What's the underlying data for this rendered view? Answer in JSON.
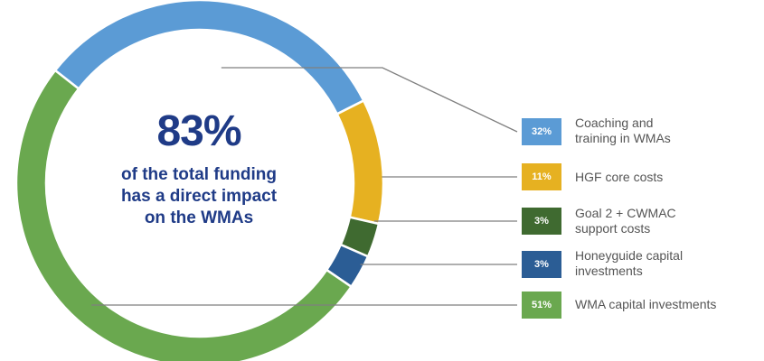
{
  "chart_data": {
    "type": "donut",
    "center_value": "83%",
    "center_text": [
      "of the total funding",
      "has a direct impact",
      "on the WMAs"
    ],
    "series": [
      {
        "label_lines": [
          "Coaching and",
          "training in WMAs"
        ],
        "value": 32,
        "display": "32%",
        "color": "#5b9bd5"
      },
      {
        "label_lines": [
          "HGF core costs"
        ],
        "value": 11,
        "display": "11%",
        "color": "#e6b121"
      },
      {
        "label_lines": [
          "Goal 2 + CWMAC",
          "support costs"
        ],
        "value": 3,
        "display": "3%",
        "color": "#3f6a30"
      },
      {
        "label_lines": [
          "Honeyguide capital",
          "investments"
        ],
        "value": 3,
        "display": "3%",
        "color": "#2b5d95"
      },
      {
        "label_lines": [
          "WMA capital investments"
        ],
        "value": 51,
        "display": "51%",
        "color": "#6aa84f"
      }
    ]
  }
}
